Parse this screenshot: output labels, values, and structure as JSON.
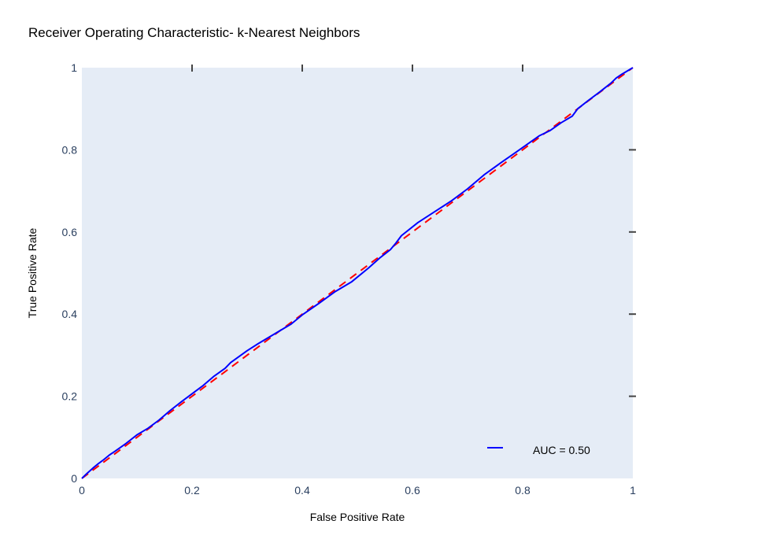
{
  "chart_data": {
    "type": "line",
    "title": "Receiver Operating Characteristic- k-Nearest Neighbors",
    "xlabel": "False Positive Rate",
    "ylabel": "True Positive Rate",
    "xlim": [
      0,
      1
    ],
    "ylim": [
      0,
      1
    ],
    "x_ticks": [
      "0",
      "0.2",
      "0.4",
      "0.6",
      "0.8",
      "1"
    ],
    "y_ticks": [
      "0",
      "0.2",
      "0.4",
      "0.6",
      "0.8",
      "1"
    ],
    "grid": false,
    "plot_background": "#e5ecf6",
    "legend_position": "bottom-right",
    "series": [
      {
        "name": "AUC = 0.50",
        "color": "#0000ff",
        "style": "solid",
        "x": [
          0,
          0.01,
          0.02,
          0.03,
          0.04,
          0.05,
          0.06,
          0.08,
          0.1,
          0.12,
          0.14,
          0.16,
          0.18,
          0.2,
          0.22,
          0.24,
          0.26,
          0.27,
          0.3,
          0.32,
          0.35,
          0.38,
          0.4,
          0.43,
          0.46,
          0.49,
          0.52,
          0.54,
          0.56,
          0.57,
          0.58,
          0.61,
          0.64,
          0.67,
          0.7,
          0.73,
          0.76,
          0.79,
          0.81,
          0.83,
          0.85,
          0.87,
          0.89,
          0.9,
          0.92,
          0.94,
          0.96,
          0.97,
          0.98,
          1.0
        ],
        "y": [
          0,
          0.013,
          0.025,
          0.036,
          0.046,
          0.057,
          0.066,
          0.085,
          0.106,
          0.122,
          0.142,
          0.165,
          0.186,
          0.206,
          0.226,
          0.249,
          0.268,
          0.282,
          0.311,
          0.328,
          0.352,
          0.376,
          0.398,
          0.426,
          0.455,
          0.479,
          0.512,
          0.536,
          0.557,
          0.573,
          0.591,
          0.623,
          0.649,
          0.675,
          0.705,
          0.739,
          0.768,
          0.796,
          0.815,
          0.834,
          0.847,
          0.866,
          0.882,
          0.9,
          0.921,
          0.941,
          0.962,
          0.975,
          0.984,
          1.0
        ]
      },
      {
        "name": "",
        "color": "#ff0000",
        "style": "dash",
        "x": [
          0,
          1
        ],
        "y": [
          0,
          1
        ]
      }
    ],
    "legend": [
      {
        "label": "AUC = 0.50",
        "color": "#0000ff"
      }
    ]
  }
}
